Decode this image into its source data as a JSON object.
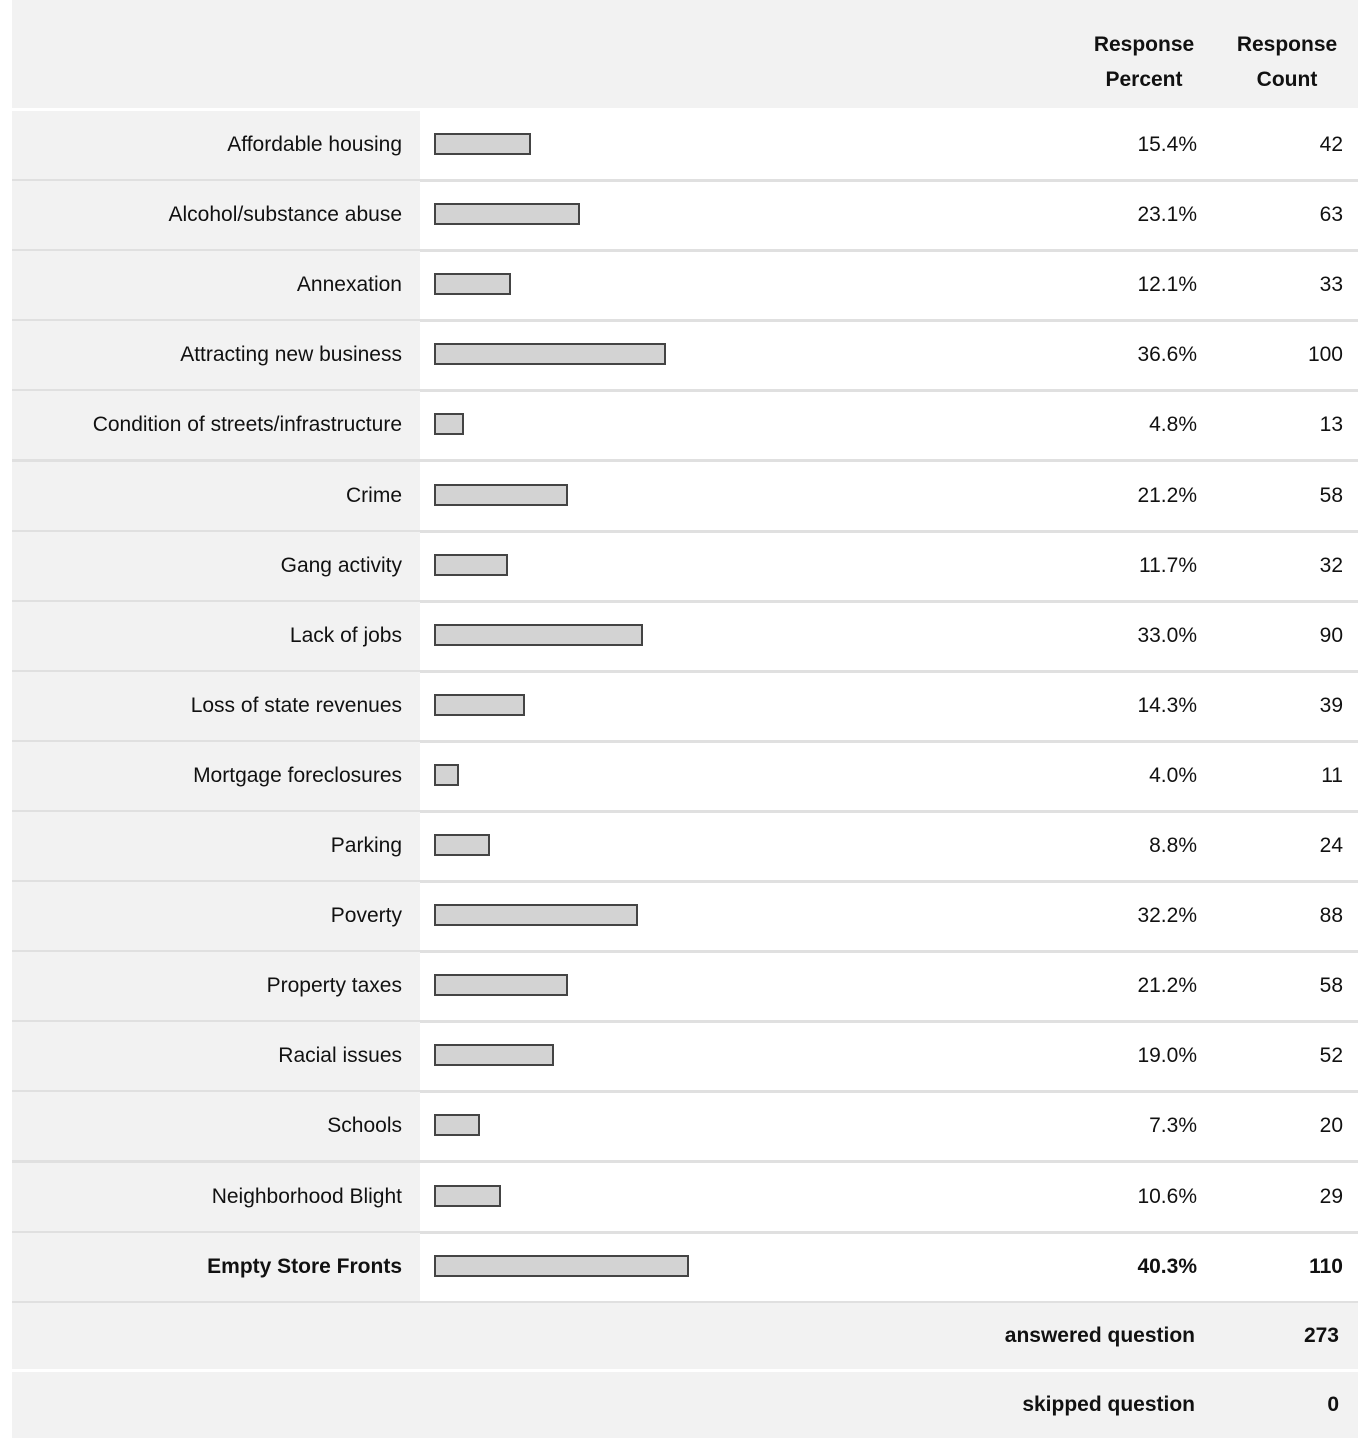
{
  "chart_data": {
    "type": "bar",
    "orientation": "horizontal",
    "value_header": "Response Percent",
    "count_header": "Response Count",
    "categories": [
      "Affordable housing",
      "Alcohol/substance abuse",
      "Annexation",
      "Attracting new business",
      "Condition of streets/infrastructure",
      "Crime",
      "Gang activity",
      "Lack of jobs",
      "Loss of state revenues",
      "Mortgage foreclosures",
      "Parking",
      "Poverty",
      "Property taxes",
      "Racial issues",
      "Schools",
      "Neighborhood Blight",
      "Empty Store Fronts"
    ],
    "values": [
      15.4,
      23.1,
      12.1,
      36.6,
      4.8,
      21.2,
      11.7,
      33.0,
      14.3,
      4.0,
      8.8,
      32.2,
      21.2,
      19.0,
      7.3,
      10.6,
      40.3
    ],
    "value_labels": [
      "15.4%",
      "23.1%",
      "12.1%",
      "36.6%",
      "4.8%",
      "21.2%",
      "11.7%",
      "33.0%",
      "14.3%",
      "4.0%",
      "8.8%",
      "32.2%",
      "21.2%",
      "19.0%",
      "7.3%",
      "10.6%",
      "40.3%"
    ],
    "counts": [
      42,
      63,
      33,
      100,
      13,
      58,
      32,
      90,
      39,
      11,
      24,
      88,
      58,
      52,
      20,
      29,
      110
    ],
    "color": "#d3d3d3",
    "summary": [
      {
        "label": "answered question",
        "value": 273
      },
      {
        "label": "skipped question",
        "value": 0
      }
    ]
  }
}
